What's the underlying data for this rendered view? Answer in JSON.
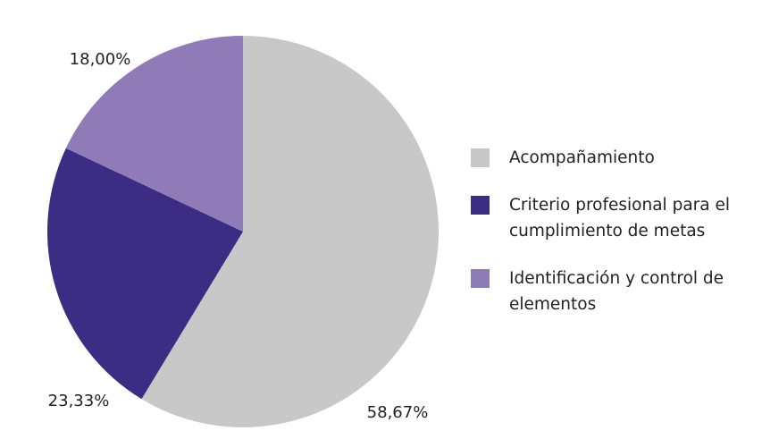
{
  "chart_data": {
    "type": "pie",
    "categories": [
      "Acompañamiento",
      "Criterio profesional para el cumplimiento de metas",
      "Identificación y control de elementos"
    ],
    "values": [
      58.67,
      23.33,
      18.0
    ],
    "value_labels": [
      "58,67%",
      "23,33%",
      "18,00%"
    ],
    "colors": [
      "#c8c8c8",
      "#3b2d84",
      "#8f7bb7"
    ],
    "legend": "right"
  }
}
